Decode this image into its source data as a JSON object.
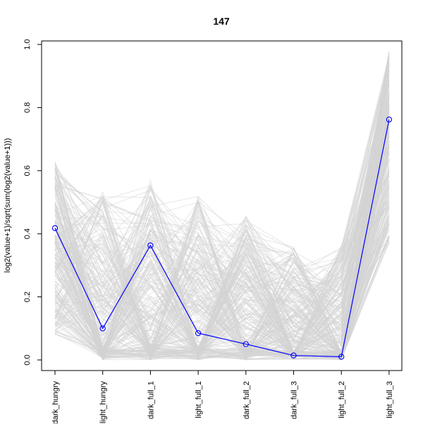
{
  "chart_data": {
    "type": "line",
    "title": "147",
    "xlabel": "",
    "ylabel": "log2(value+1)/sqrt(sum(log2(value+1)))",
    "categories": [
      "dark_hungry",
      "light_hungry",
      "dark_full_1",
      "light_full_1",
      "dark_full_2",
      "dark_full_3",
      "light_full_2",
      "light_full_3"
    ],
    "ylim": [
      0,
      1
    ],
    "yticks": [
      0.0,
      0.2,
      0.4,
      0.6,
      0.8,
      1.0
    ],
    "ytick_labels": [
      "0.0",
      "0.2",
      "0.4",
      "0.6",
      "0.8",
      "1.0"
    ],
    "grid": false,
    "series": [
      {
        "values": [
          0.418,
          0.1,
          0.363,
          0.085,
          0.05,
          0.014,
          0.01,
          0.762
        ],
        "color": "#0000ff",
        "markers": "open-circle"
      }
    ],
    "background_lines": {
      "color": "#d3d3d3",
      "ranges": [
        [
          0.08,
          0.63
        ],
        [
          0.0,
          0.54
        ],
        [
          0.0,
          0.57
        ],
        [
          0.0,
          0.52
        ],
        [
          0.0,
          0.46
        ],
        [
          0.0,
          0.36
        ],
        [
          0.0,
          0.36
        ],
        [
          0.37,
          0.98
        ]
      ]
    }
  }
}
